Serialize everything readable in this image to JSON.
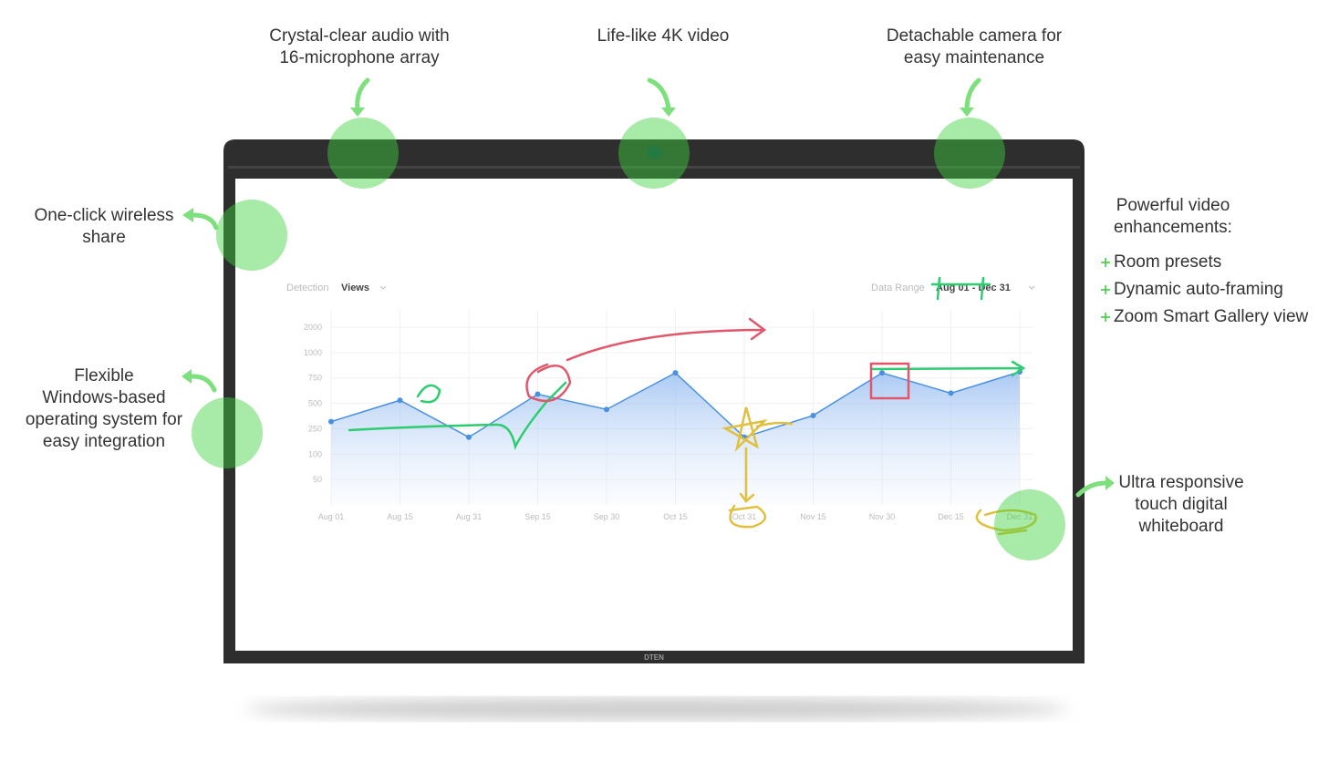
{
  "callouts": {
    "audio": [
      "Crystal-clear audio with",
      "16-microphone array"
    ],
    "video": [
      "Life-like 4K video"
    ],
    "camera": [
      "Detachable camera for",
      "easy maintenance"
    ],
    "share": [
      "One-click wireless",
      "share"
    ],
    "windows": [
      "Flexible",
      "Windows-based",
      "operating system for",
      "easy integration"
    ],
    "enhancements": {
      "title": [
        "Powerful video",
        "enhancements:"
      ],
      "items": [
        "Room presets",
        "Dynamic auto-framing",
        "Zoom Smart Gallery view"
      ]
    },
    "whiteboard": [
      "Ultra responsive",
      "touch digital",
      "whiteboard"
    ]
  },
  "device": {
    "brand": "DTEN"
  },
  "screen": {
    "detection_label": "Detection",
    "detection_value": "Views",
    "range_label": "Data Range",
    "range_value": "Aug 01 - Dec 31"
  },
  "chart_data": {
    "type": "area",
    "categories": [
      "Aug 01",
      "Aug 15",
      "Aug 31",
      "Sep 15",
      "Sep 30",
      "Oct 15",
      "Oct 31",
      "Nov 15",
      "Nov 30",
      "Dec 15",
      "Dec 31"
    ],
    "values": [
      320,
      530,
      200,
      590,
      440,
      800,
      200,
      380,
      800,
      600,
      810
    ],
    "color": "#4a90e2",
    "ylim": [
      0,
      2000
    ],
    "yticks": [
      50,
      100,
      250,
      500,
      750,
      1000,
      2000
    ],
    "grid": true
  }
}
